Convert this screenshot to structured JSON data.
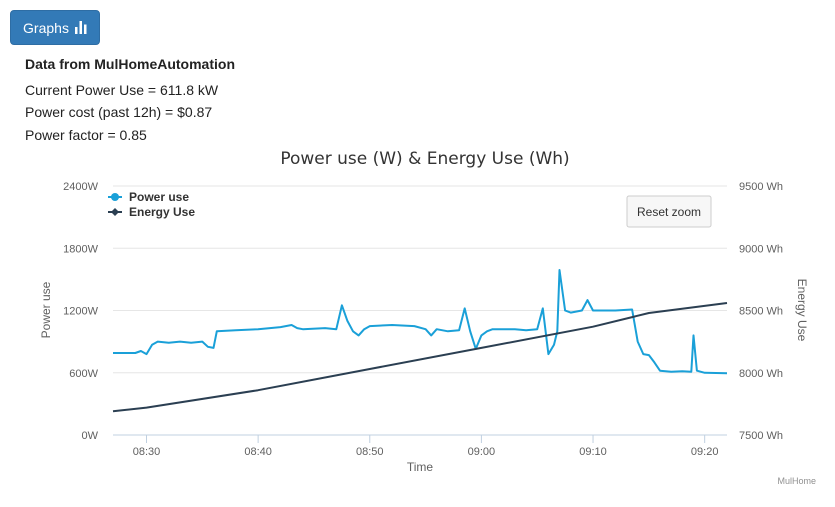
{
  "header": {
    "graphs_button_label": "Graphs",
    "button_color": "#337ab7"
  },
  "info": {
    "source_label": "Data from MulHomeAutomation",
    "current_power": "Current Power Use = 611.8 kW",
    "power_cost": "Power cost (past 12h) = $0.87",
    "power_factor": "Power factor = 0.85"
  },
  "chart": {
    "reset_zoom_label": "Reset zoom",
    "credit": "MulHome"
  },
  "chart_data": {
    "type": "line",
    "title": "Power use (W) & Energy Use (Wh)",
    "xlabel": "Time",
    "ylabel_left": "Power use",
    "ylabel_right": "Energy Use",
    "x_ticks": [
      "08:30",
      "08:40",
      "08:50",
      "09:00",
      "09:10",
      "09:20"
    ],
    "xlim": [
      "08:27",
      "09:22"
    ],
    "y_left_ticks": [
      "0W",
      "600W",
      "1200W",
      "1800W",
      "2400W"
    ],
    "ylim_left": [
      0,
      2400
    ],
    "y_right_ticks": [
      "7500 Wh",
      "8000 Wh",
      "8500 Wh",
      "9000 Wh",
      "9500 Wh"
    ],
    "ylim_right": [
      7500,
      9500
    ],
    "grid": true,
    "legend_position": "top-left",
    "series": [
      {
        "name": "Power use",
        "axis": "left",
        "color": "#1aa0d8",
        "points": [
          [
            "08:27",
            790
          ],
          [
            "08:29",
            790
          ],
          [
            "08:29.5",
            810
          ],
          [
            "08:30",
            780
          ],
          [
            "08:30.5",
            870
          ],
          [
            "08:31",
            900
          ],
          [
            "08:32",
            890
          ],
          [
            "08:33",
            900
          ],
          [
            "08:34",
            890
          ],
          [
            "08:35",
            900
          ],
          [
            "08:35.5",
            850
          ],
          [
            "08:36",
            840
          ],
          [
            "08:36.3",
            1000
          ],
          [
            "08:38",
            1010
          ],
          [
            "08:40",
            1020
          ],
          [
            "08:42",
            1040
          ],
          [
            "08:43",
            1060
          ],
          [
            "08:43.5",
            1030
          ],
          [
            "08:44",
            1020
          ],
          [
            "08:46",
            1030
          ],
          [
            "08:47",
            1020
          ],
          [
            "08:47.5",
            1250
          ],
          [
            "08:48",
            1100
          ],
          [
            "08:48.5",
            1000
          ],
          [
            "08:49",
            960
          ],
          [
            "08:49.5",
            1020
          ],
          [
            "08:50",
            1050
          ],
          [
            "08:52",
            1060
          ],
          [
            "08:54",
            1050
          ],
          [
            "08:55",
            1020
          ],
          [
            "08:55.5",
            960
          ],
          [
            "08:56",
            1020
          ],
          [
            "08:57",
            1000
          ],
          [
            "08:58",
            1010
          ],
          [
            "08:58.5",
            1220
          ],
          [
            "08:59",
            1000
          ],
          [
            "08:59.5",
            830
          ],
          [
            "09:00",
            960
          ],
          [
            "09:00.5",
            1000
          ],
          [
            "09:01",
            1020
          ],
          [
            "09:03",
            1020
          ],
          [
            "09:04",
            1010
          ],
          [
            "09:05",
            1020
          ],
          [
            "09:05.5",
            1220
          ],
          [
            "09:06",
            780
          ],
          [
            "09:06.5",
            870
          ],
          [
            "09:06.8",
            1000
          ],
          [
            "09:07",
            1590
          ],
          [
            "09:07.5",
            1200
          ],
          [
            "09:08",
            1180
          ],
          [
            "09:09",
            1200
          ],
          [
            "09:09.5",
            1300
          ],
          [
            "09:10",
            1200
          ],
          [
            "09:12",
            1200
          ],
          [
            "09:13.5",
            1210
          ],
          [
            "09:14",
            900
          ],
          [
            "09:14.5",
            780
          ],
          [
            "09:15",
            770
          ],
          [
            "09:15.5",
            700
          ],
          [
            "09:16",
            620
          ],
          [
            "09:17",
            610
          ],
          [
            "09:18",
            615
          ],
          [
            "09:18.8",
            610
          ],
          [
            "09:19",
            960
          ],
          [
            "09:19.3",
            620
          ],
          [
            "09:20",
            600
          ],
          [
            "09:22",
            595
          ]
        ]
      },
      {
        "name": "Energy Use",
        "axis": "right",
        "color": "#2b3f52",
        "points": [
          [
            "08:27",
            7690
          ],
          [
            "08:30",
            7720
          ],
          [
            "08:40",
            7860
          ],
          [
            "08:50",
            8030
          ],
          [
            "09:00",
            8200
          ],
          [
            "09:10",
            8370
          ],
          [
            "09:15",
            8480
          ],
          [
            "09:22",
            8560
          ]
        ]
      }
    ]
  }
}
